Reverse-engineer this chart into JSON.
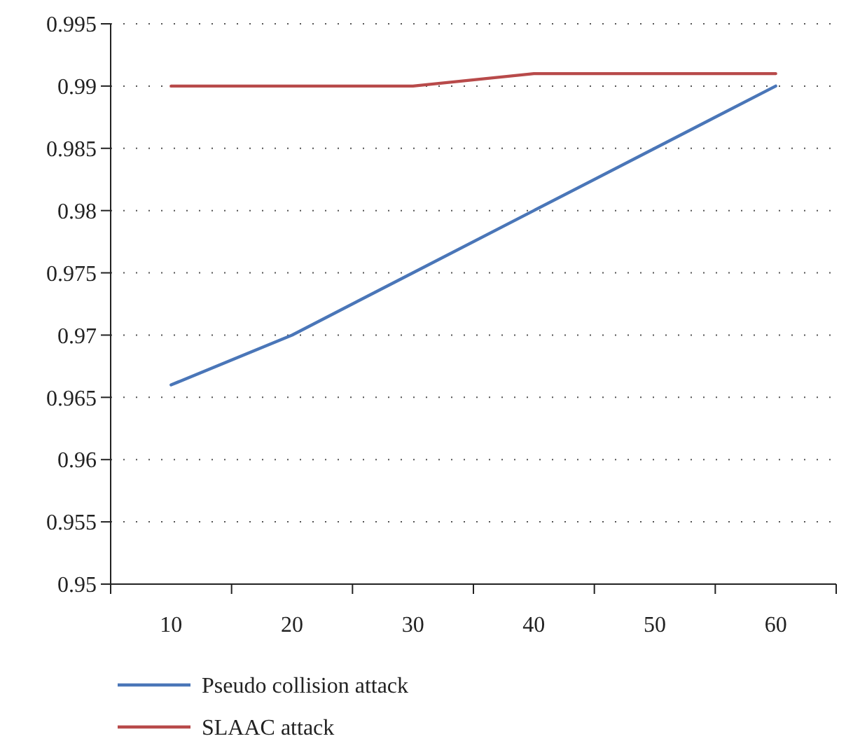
{
  "chart_data": {
    "type": "line",
    "categories": [
      "10",
      "20",
      "30",
      "40",
      "50",
      "60"
    ],
    "series": [
      {
        "name": "Pseudo collision attack",
        "color": "#4a76b8",
        "values": [
          0.966,
          0.97,
          0.975,
          0.98,
          0.985,
          0.99
        ]
      },
      {
        "name": "SLAAC attack",
        "color": "#b84a4a",
        "values": [
          0.99,
          0.99,
          0.99,
          0.991,
          0.991,
          0.991
        ]
      }
    ],
    "ylim": [
      0.95,
      0.995
    ],
    "yticks": [
      0.95,
      0.955,
      0.96,
      0.965,
      0.97,
      0.975,
      0.98,
      0.985,
      0.99,
      0.995
    ],
    "grid": "y",
    "legend": "bottom",
    "marker": "none",
    "line_style": "solid"
  }
}
